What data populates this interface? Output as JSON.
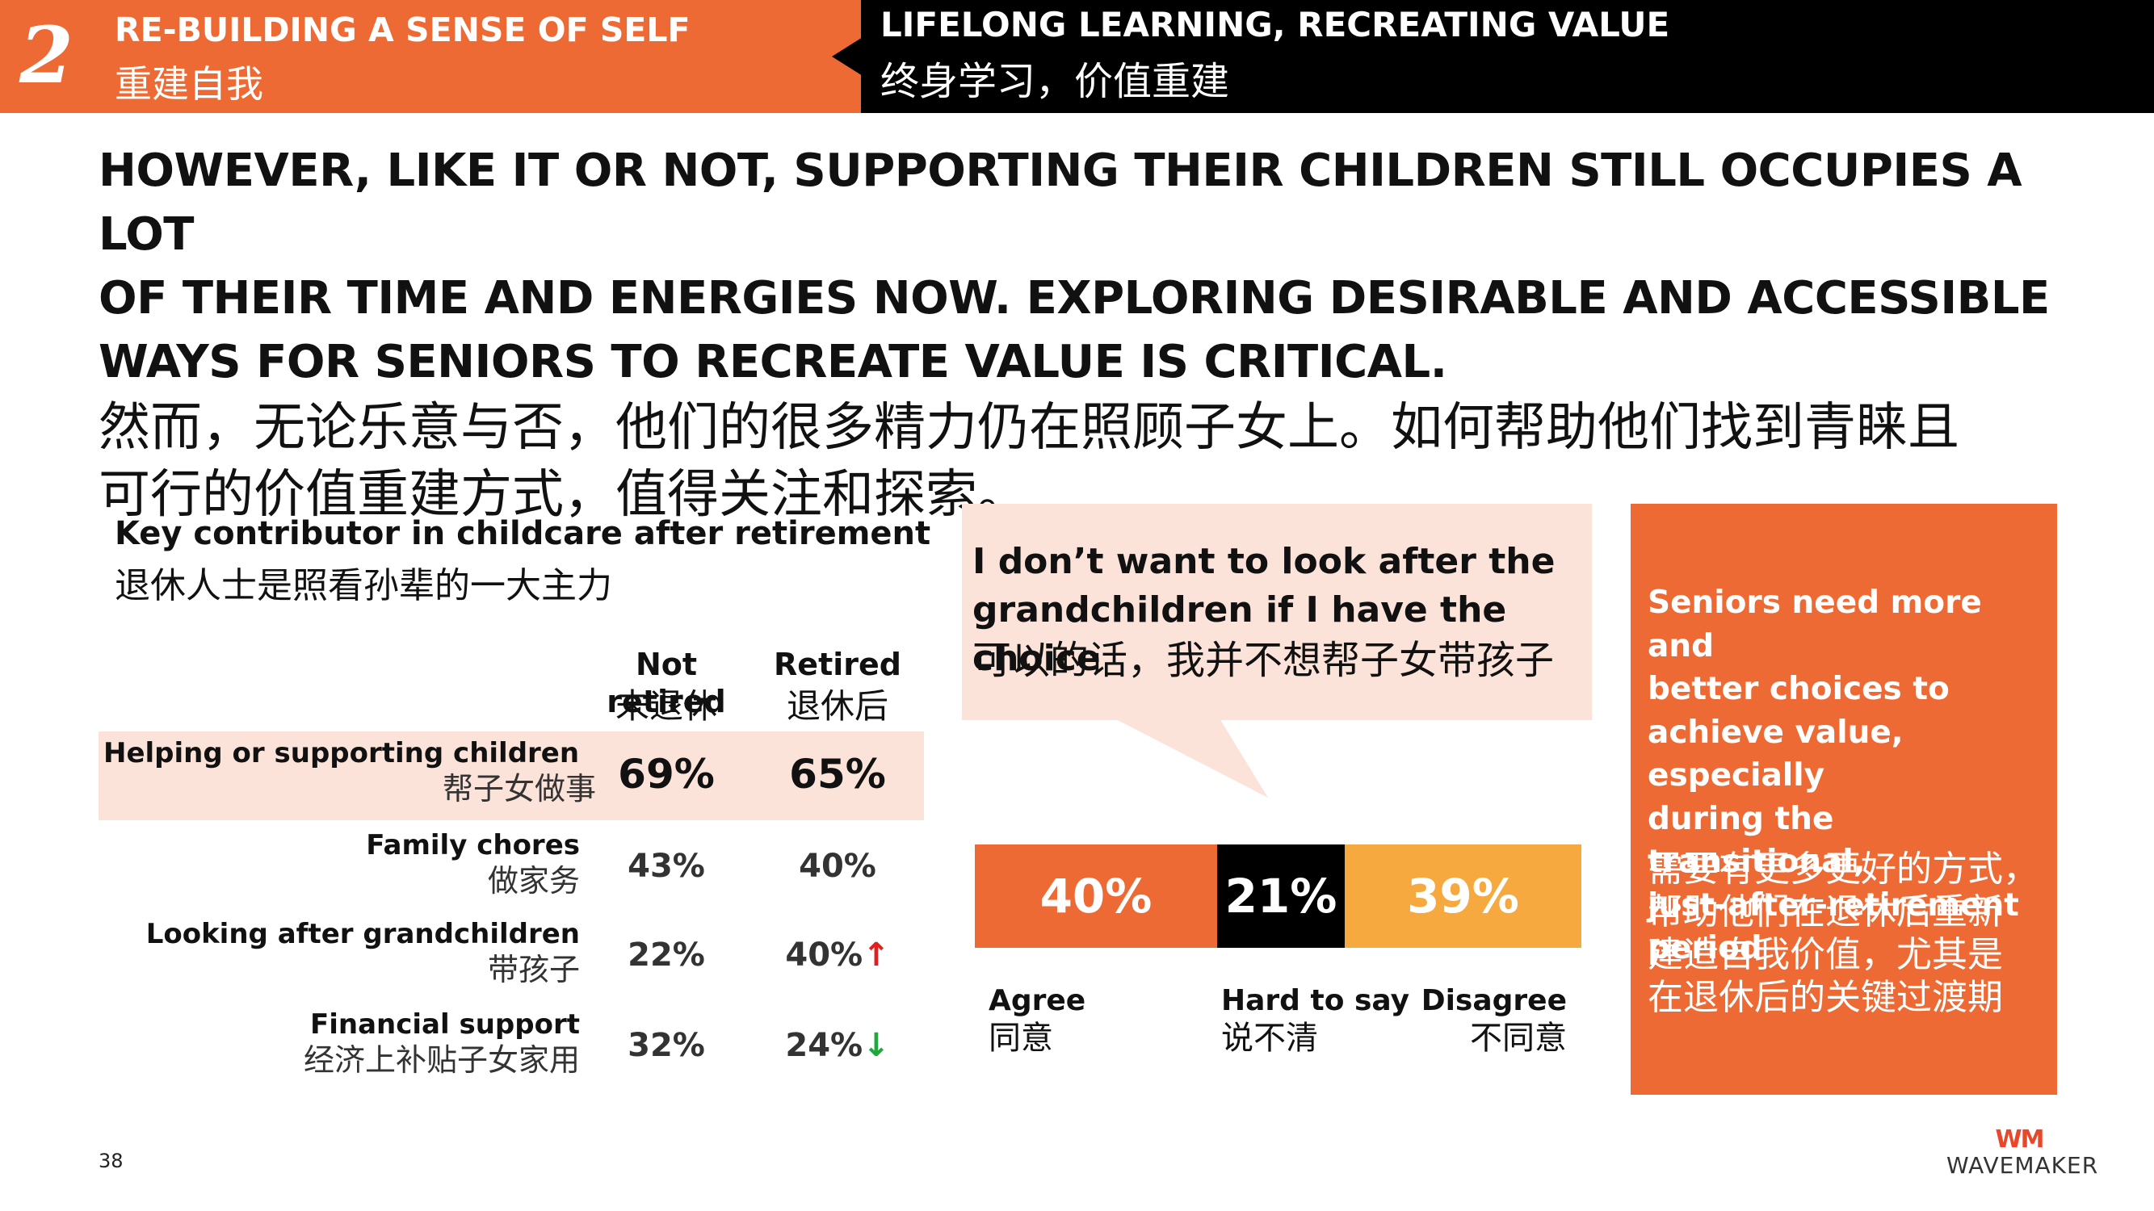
{
  "header": {
    "section_number": "2",
    "left_title_en": "RE-BUILDING A SENSE OF SELF",
    "left_title_cn": "重建自我",
    "right_title_en": "LIFELONG LEARNING, RECREATING VALUE",
    "right_title_cn": "终身学习，价值重建",
    "colors": {
      "orange": "#ED6A35",
      "black": "#000000"
    }
  },
  "headline": {
    "en_lines": [
      "HOWEVER, LIKE IT OR NOT, SUPPORTING THEIR CHILDREN STILL OCCUPIES A LOT",
      "OF THEIR TIME AND ENERGIES NOW. EXPLORING DESIRABLE AND ACCESSIBLE",
      "WAYS FOR SENIORS TO RECREATE VALUE IS CRITICAL."
    ],
    "cn_lines": [
      "然而，无论乐意与否，他们的很多精力仍在照顾子女上。如何帮助他们找到青睐且",
      "可行的价值重建方式，值得关注和探索。"
    ]
  },
  "childcare_table": {
    "title_en": "Key contributor in childcare after retirement",
    "title_cn": "退休人士是照看孙辈的一大主力",
    "columns": [
      {
        "en": "Not retired",
        "cn": "未退休"
      },
      {
        "en": "Retired",
        "cn": "退休后"
      }
    ],
    "rows": [
      {
        "en": "Helping or supporting children",
        "cn": "帮子女做事",
        "not_retired": "69%",
        "retired": "65%",
        "trend": "",
        "highlight": true
      },
      {
        "en": "Family chores",
        "cn": "做家务",
        "not_retired": "43%",
        "retired": "40%",
        "trend": ""
      },
      {
        "en": "Looking after grandchildren",
        "cn": "带孩子",
        "not_retired": "22%",
        "retired": "40%",
        "trend": "↑",
        "trend_color": "#E02020"
      },
      {
        "en": "Financial support",
        "cn": "经济上补贴子女家用",
        "not_retired": "32%",
        "retired": "24%",
        "trend": "↓",
        "trend_color": "#1FA83B"
      }
    ],
    "highlight_color": "#FCE3D9"
  },
  "quote": {
    "en_lines": [
      "I don’t want to look after the",
      "grandchildren if I have the choice"
    ],
    "cn": "可以的话，我并不想帮子女带孩子"
  },
  "agreement_bar": {
    "segments": [
      {
        "value": 40,
        "label": "40%",
        "en": "Agree",
        "cn": "同意",
        "color": "#ED6A35"
      },
      {
        "value": 21,
        "label": "21%",
        "en": "Hard to say",
        "cn": "说不清",
        "color": "#000000"
      },
      {
        "value": 39,
        "label": "39%",
        "en": "Disagree",
        "cn": "不同意",
        "color": "#F5A93E"
      }
    ]
  },
  "insight_box": {
    "en_lines": [
      "Seniors need more and",
      "better choices to",
      "achieve value, especially",
      "during the transitional,",
      "just-after-retirement",
      "period"
    ],
    "cn_lines": [
      "需要有更多更好的方式，",
      "帮助他们在退休后重新",
      "建造自我价值，尤其是",
      "在退休后的关键过渡期"
    ]
  },
  "footer": {
    "page_number": "38",
    "logo_mark": "WM",
    "logo_text": "WAVEMAKER"
  }
}
